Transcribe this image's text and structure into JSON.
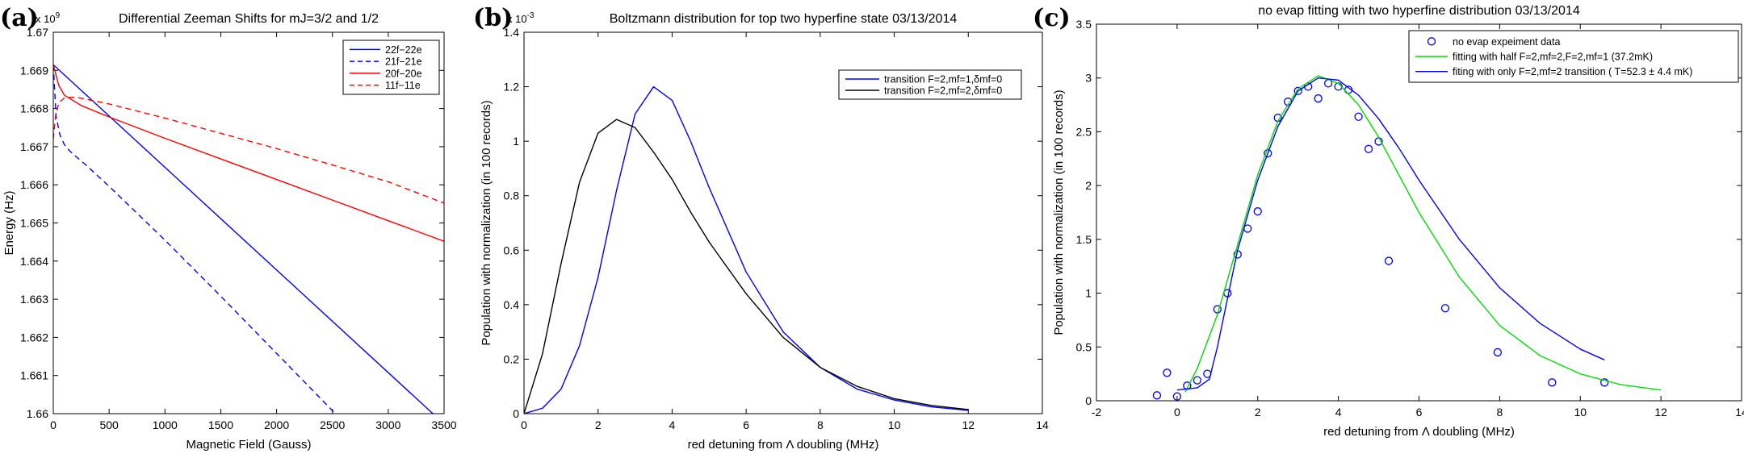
{
  "panel_labels": [
    "(a)",
    "(b)",
    "(c)"
  ],
  "chart_data": [
    {
      "type": "line",
      "panel": "(a)",
      "title": "Differential Zeeman Shifts for mJ=3/2 and 1/2",
      "xlabel": "Magnetic Field (Gauss)",
      "ylabel": "Energy (Hz)",
      "y_exponent": "x 10^9",
      "xlim": [
        0,
        3500
      ],
      "ylim": [
        1.66,
        1.67
      ],
      "xticks": [
        0,
        500,
        1000,
        1500,
        2000,
        2500,
        3000,
        3500
      ],
      "yticks": [
        1.66,
        1.661,
        1.662,
        1.663,
        1.664,
        1.665,
        1.666,
        1.667,
        1.668,
        1.669,
        1.67
      ],
      "ytick_labels": [
        "1.66",
        "1.661",
        "1.662",
        "1.663",
        "1.664",
        "1.665",
        "1.666",
        "1.667",
        "1.668",
        "1.669",
        "1.67"
      ],
      "legend_position": "top-right",
      "series": [
        {
          "name": "22f−22e",
          "color": "#0000ff",
          "dash": "solid",
          "x": [
            0,
            3400
          ],
          "y": [
            1.66915,
            1.66
          ]
        },
        {
          "name": "21f−21e",
          "color": "#0000ff",
          "dash": "dashed",
          "x": [
            0,
            25,
            60,
            100,
            150,
            200,
            300,
            500,
            1000,
            1500,
            2000,
            2500,
            2850
          ],
          "y": [
            1.66915,
            1.6678,
            1.6673,
            1.66705,
            1.66688,
            1.66675,
            1.6665,
            1.66596,
            1.66455,
            1.66308,
            1.66158,
            1.66008,
            1.659
          ]
        },
        {
          "name": "20f−20e",
          "color": "#ff0000",
          "dash": "solid",
          "x": [
            0,
            50,
            100,
            150,
            250,
            500,
            1000,
            1500,
            2000,
            2500,
            3000,
            3500
          ],
          "y": [
            1.66915,
            1.6686,
            1.66835,
            1.66826,
            1.66808,
            1.66778,
            1.66722,
            1.66668,
            1.66614,
            1.6656,
            1.66506,
            1.66452
          ]
        },
        {
          "name": "11f−11e",
          "color": "#ff0000",
          "dash": "dashed",
          "x": [
            0,
            20,
            50,
            100,
            200,
            500,
            1000,
            1500,
            2000,
            2500,
            3000,
            3500
          ],
          "y": [
            1.6672,
            1.6678,
            1.66815,
            1.66828,
            1.6683,
            1.66812,
            1.66775,
            1.66735,
            1.66695,
            1.66652,
            1.66608,
            1.66552
          ]
        }
      ]
    },
    {
      "type": "line",
      "panel": "(b)",
      "title": "Boltzmann distribution for top two hyperfine state   03/13/2014",
      "xlabel": "red detuning from Λ doubling (MHz)",
      "ylabel": "Population with normalization (in 100 records)",
      "y_exponent": "x 10^-3",
      "xlim": [
        0,
        14
      ],
      "ylim": [
        0,
        1.4
      ],
      "xticks": [
        0,
        2,
        4,
        6,
        8,
        10,
        12,
        14
      ],
      "yticks": [
        0,
        0.2,
        0.4,
        0.6,
        0.8,
        1,
        1.2,
        1.4
      ],
      "ytick_labels": [
        "0",
        "0.2",
        "0.4",
        "0.6",
        "0.8",
        "1",
        "1.2",
        "1.4"
      ],
      "legend_position": "top-right",
      "series": [
        {
          "name": "transition F=2,mf=1,δmf=0",
          "color": "#0000ff",
          "dash": "solid",
          "x": [
            0,
            0.5,
            1,
            1.5,
            2,
            2.5,
            3,
            3.5,
            4,
            4.5,
            5,
            6,
            7,
            8,
            9,
            10,
            11,
            12
          ],
          "y": [
            0,
            0.02,
            0.09,
            0.25,
            0.5,
            0.82,
            1.1,
            1.2,
            1.15,
            1.0,
            0.83,
            0.52,
            0.3,
            0.17,
            0.09,
            0.05,
            0.025,
            0.012
          ]
        },
        {
          "name": "transition F=2,mf=2,δmf=0",
          "color": "#000000",
          "dash": "solid",
          "x": [
            0,
            0.5,
            1,
            1.5,
            2,
            2.5,
            3,
            3.5,
            4,
            4.5,
            5,
            6,
            7,
            8,
            9,
            10,
            11,
            12
          ],
          "y": [
            0,
            0.22,
            0.55,
            0.85,
            1.03,
            1.08,
            1.05,
            0.96,
            0.86,
            0.74,
            0.63,
            0.44,
            0.28,
            0.17,
            0.1,
            0.055,
            0.03,
            0.015
          ]
        }
      ]
    },
    {
      "type": "scatter",
      "panel": "(c)",
      "title": "no evap fitting with two hyperfine distribution 03/13/2014",
      "xlabel": "red detuning from Λ doubling (MHz)",
      "ylabel": "Population with normalization (in 100 records)",
      "xlim": [
        -2,
        14
      ],
      "ylim": [
        0,
        3.5
      ],
      "xticks": [
        -2,
        0,
        2,
        4,
        6,
        8,
        10,
        12,
        14
      ],
      "yticks": [
        0,
        0.5,
        1,
        1.5,
        2,
        2.5,
        3,
        3.5
      ],
      "ytick_labels": [
        "0",
        "0.5",
        "1",
        "1.5",
        "2",
        "2.5",
        "3",
        "3.5"
      ],
      "legend_position": "top-right",
      "series": [
        {
          "name": "no evap expeiment data",
          "color": "#0000ff",
          "marker": "circle",
          "x": [
            -0.5,
            -0.25,
            0,
            0.25,
            0.5,
            0.75,
            1.0,
            1.25,
            1.5,
            1.75,
            2.0,
            2.25,
            2.5,
            2.75,
            3.0,
            3.25,
            3.5,
            3.75,
            4.0,
            4.25,
            4.5,
            4.75,
            5.0,
            5.25,
            6.65,
            7.95,
            9.3,
            10.6
          ],
          "y": [
            0.05,
            0.26,
            0.04,
            0.14,
            0.19,
            0.25,
            0.85,
            1.0,
            1.36,
            1.6,
            1.76,
            2.3,
            2.63,
            2.78,
            2.88,
            2.92,
            2.81,
            2.95,
            2.92,
            2.89,
            2.64,
            2.34,
            2.41,
            1.3,
            0.86,
            0.45,
            0.17,
            0.17
          ]
        },
        {
          "name": "fitting with half F=2,mf=2,F=2,mf=1 (37.2mK)",
          "color": "#00dd00",
          "dash": "solid",
          "x": [
            0.2,
            0.5,
            1,
            1.5,
            2,
            2.5,
            3,
            3.5,
            4,
            4.5,
            5,
            5.5,
            6,
            7,
            8,
            9,
            10,
            11,
            12
          ],
          "y": [
            0.08,
            0.3,
            0.8,
            1.45,
            2.1,
            2.6,
            2.9,
            3.02,
            2.95,
            2.75,
            2.45,
            2.1,
            1.75,
            1.15,
            0.7,
            0.42,
            0.25,
            0.15,
            0.1
          ]
        },
        {
          "name": "fiting with only F=2,mf=2 transition ( T=52.3 ± 4.4 mK)",
          "color": "#0000ff",
          "dash": "solid",
          "x": [
            0,
            0.5,
            0.8,
            1,
            1.25,
            1.5,
            2,
            2.5,
            3,
            3.5,
            4,
            4.5,
            5,
            5.5,
            6,
            7,
            8,
            9,
            10,
            10.6
          ],
          "y": [
            0.1,
            0.12,
            0.2,
            0.5,
            0.95,
            1.4,
            2.05,
            2.55,
            2.88,
            3.0,
            2.98,
            2.84,
            2.62,
            2.35,
            2.05,
            1.5,
            1.05,
            0.72,
            0.48,
            0.38
          ]
        }
      ]
    }
  ]
}
